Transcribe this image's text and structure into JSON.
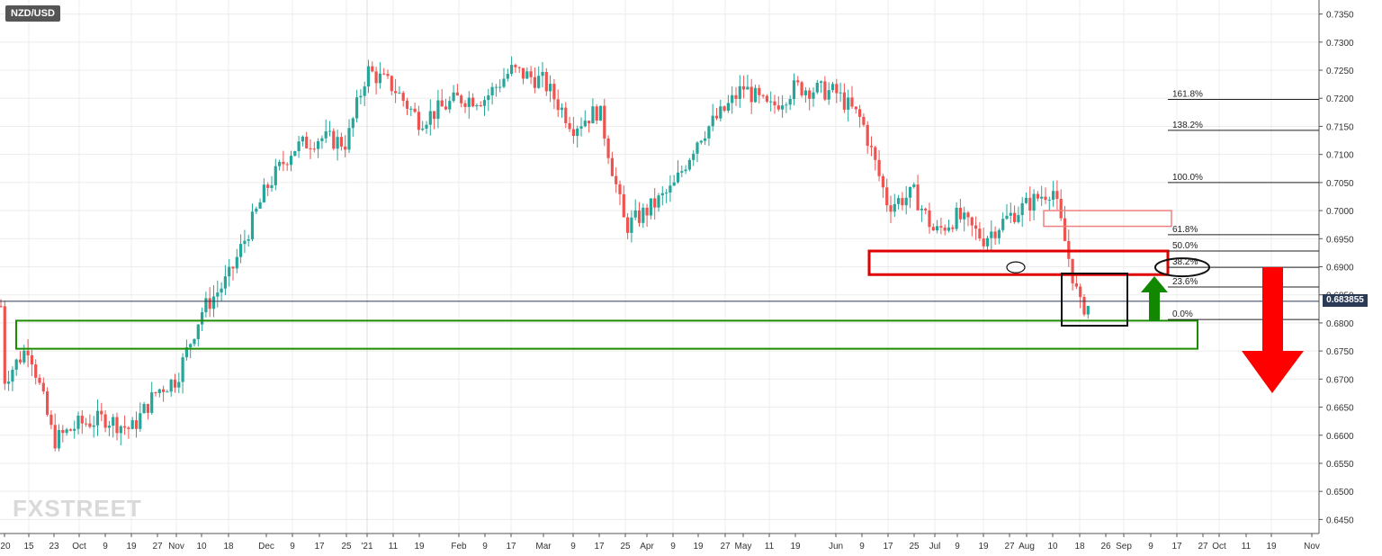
{
  "symbol": "NZD/USD",
  "logo": {
    "prefix": "FX",
    "x": "X",
    "rest": "STREET",
    "text": "FXSTREET"
  },
  "colors": {
    "up": "#26a69a",
    "down": "#ef5350",
    "grid": "#ececec",
    "axis": "#555555",
    "price_line": "#2b3a55",
    "fib": "#222222",
    "zone_red": "#e00000",
    "zone_green": "#1e8c00",
    "arrow_red": "#ff0000",
    "arrow_green": "#118800"
  },
  "chart_data": {
    "type": "candlestick",
    "title": "NZD/USD",
    "period": "daily",
    "current_price": "0.683855",
    "y_ticks": [
      "0.7350",
      "0.7300",
      "0.7250",
      "0.7200",
      "0.7150",
      "0.7100",
      "0.7050",
      "0.7000",
      "0.6950",
      "0.6900",
      "0.6850",
      "0.6800",
      "0.6750",
      "0.6700",
      "0.6650",
      "0.6600",
      "0.6550",
      "0.6500",
      "0.6450"
    ],
    "x_ticks": [
      "'20",
      "15",
      "23",
      "Oct",
      "9",
      "19",
      "27",
      "Nov",
      "10",
      "18",
      "Dec",
      "9",
      "17",
      "25",
      "'21",
      "11",
      "19",
      "Feb",
      "9",
      "17",
      "Mar",
      "9",
      "17",
      "25",
      "Apr",
      "9",
      "19",
      "27",
      "May",
      "11",
      "19",
      "Jun",
      "9",
      "17",
      "25",
      "Jul",
      "9",
      "19",
      "27",
      "Aug",
      "10",
      "18",
      "26",
      "Sep",
      "9",
      "17",
      "27",
      "Oct",
      "11",
      "19",
      "Nov"
    ],
    "ylim": [
      0.6425,
      0.7375
    ],
    "fibonacci": [
      {
        "label": "161.8%",
        "level": 0.7198
      },
      {
        "label": "138.2%",
        "level": 0.7143
      },
      {
        "label": "100.0%",
        "level": 0.705
      },
      {
        "label": "61.8%",
        "level": 0.6957
      },
      {
        "label": "50.0%",
        "level": 0.6928
      },
      {
        "label": "38.2%",
        "level": 0.6899
      },
      {
        "label": "23.6%",
        "level": 0.6864
      },
      {
        "label": "0.0%",
        "level": 0.6806
      }
    ],
    "zones": [
      {
        "color": "red",
        "from_label": "Jun",
        "low": 0.6886,
        "high": 0.6928
      },
      {
        "color": "light-red",
        "from_label": "Aug",
        "low": 0.6972,
        "high": 0.7
      },
      {
        "color": "green",
        "from_label": "15",
        "low": 0.6754,
        "high": 0.6804
      },
      {
        "color": "black",
        "from_label": "Aug",
        "low": 0.6795,
        "high": 0.6888
      }
    ],
    "close_path": [
      [
        "'20",
        0.67
      ],
      [
        "15",
        0.676
      ],
      [
        "23",
        0.659
      ],
      [
        "Oct",
        0.662
      ],
      [
        "9",
        0.663
      ],
      [
        "19",
        0.661
      ],
      [
        "27",
        0.668
      ],
      [
        "Nov",
        0.67
      ],
      [
        "10",
        0.682
      ],
      [
        "18",
        0.688
      ],
      [
        "Dec",
        0.704
      ],
      [
        "9",
        0.711
      ],
      [
        "17",
        0.713
      ],
      [
        "25",
        0.712
      ],
      [
        "'21",
        0.725
      ],
      [
        "11",
        0.722
      ],
      [
        "19",
        0.716
      ],
      [
        "Feb",
        0.72
      ],
      [
        "9",
        0.72
      ],
      [
        "17",
        0.725
      ],
      [
        "Mar",
        0.723
      ],
      [
        "9",
        0.715
      ],
      [
        "17",
        0.718
      ],
      [
        "25",
        0.697
      ],
      [
        "Apr",
        0.7
      ],
      [
        "9",
        0.704
      ],
      [
        "19",
        0.713
      ],
      [
        "27",
        0.718
      ],
      [
        "May",
        0.722
      ],
      [
        "11",
        0.718
      ],
      [
        "19",
        0.722
      ],
      [
        "Jun",
        0.721
      ],
      [
        "9",
        0.716
      ],
      [
        "17",
        0.701
      ],
      [
        "25",
        0.703
      ],
      [
        "Jul",
        0.696
      ],
      [
        "9",
        0.699
      ],
      [
        "19",
        0.695
      ],
      [
        "27",
        0.699
      ],
      [
        "Aug",
        0.701
      ],
      [
        "10",
        0.704
      ],
      [
        "18",
        0.683
      ]
    ],
    "grid": true,
    "legend": "none"
  }
}
